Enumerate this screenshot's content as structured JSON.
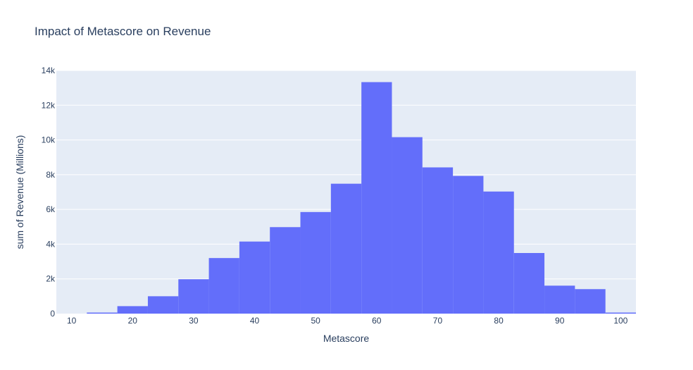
{
  "chart_data": {
    "type": "bar",
    "title": "Impact of Metascore on Revenue",
    "xlabel": "Metascore",
    "ylabel": "sum of Revenue (Millions)",
    "xlim": [
      7.5,
      102.5
    ],
    "ylim": [
      0,
      14000
    ],
    "x_ticks": [
      10,
      20,
      30,
      40,
      50,
      60,
      70,
      80,
      90,
      100
    ],
    "y_ticks": [
      0,
      2000,
      4000,
      6000,
      8000,
      10000,
      12000,
      14000
    ],
    "y_tick_labels": [
      "0",
      "2k",
      "4k",
      "6k",
      "8k",
      "10k",
      "12k",
      "14k"
    ],
    "bin_width": 5,
    "bins": [
      {
        "start": 12.5,
        "end": 17.5,
        "value": 60
      },
      {
        "start": 17.5,
        "end": 22.5,
        "value": 430
      },
      {
        "start": 22.5,
        "end": 27.5,
        "value": 1000
      },
      {
        "start": 27.5,
        "end": 32.5,
        "value": 1980
      },
      {
        "start": 32.5,
        "end": 37.5,
        "value": 3200
      },
      {
        "start": 37.5,
        "end": 42.5,
        "value": 4150
      },
      {
        "start": 42.5,
        "end": 47.5,
        "value": 4980
      },
      {
        "start": 47.5,
        "end": 52.5,
        "value": 5850
      },
      {
        "start": 52.5,
        "end": 57.5,
        "value": 7480
      },
      {
        "start": 57.5,
        "end": 62.5,
        "value": 13330
      },
      {
        "start": 62.5,
        "end": 67.5,
        "value": 10160
      },
      {
        "start": 67.5,
        "end": 72.5,
        "value": 8420
      },
      {
        "start": 72.5,
        "end": 77.5,
        "value": 7930
      },
      {
        "start": 77.5,
        "end": 82.5,
        "value": 7030
      },
      {
        "start": 82.5,
        "end": 87.5,
        "value": 3490
      },
      {
        "start": 87.5,
        "end": 92.5,
        "value": 1610
      },
      {
        "start": 92.5,
        "end": 97.5,
        "value": 1410
      },
      {
        "start": 97.5,
        "end": 102.5,
        "value": 60
      }
    ],
    "grid": true,
    "colors": {
      "bar": "#636efa",
      "plot_bg": "#e5ecf6",
      "grid": "#ffffff",
      "text": "#2a3f5f"
    }
  }
}
